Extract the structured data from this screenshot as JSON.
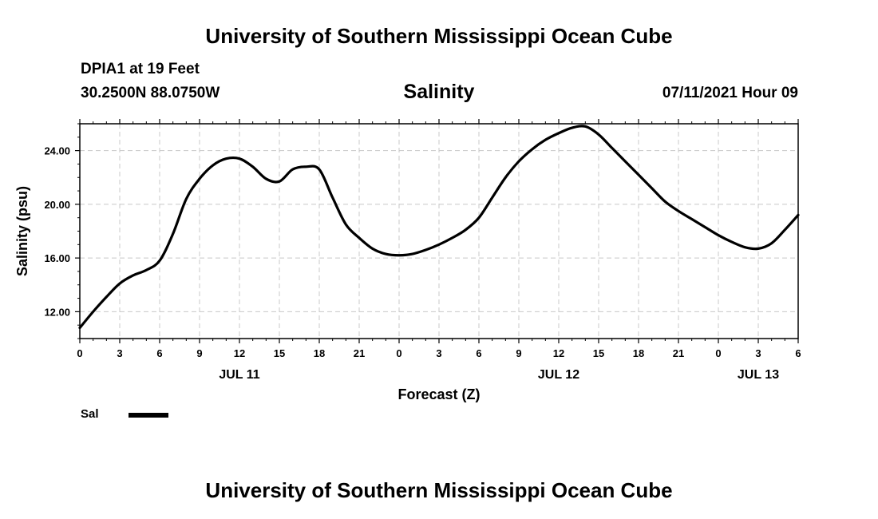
{
  "header": {
    "title": "University of Southern Mississippi Ocean Cube",
    "station": "DPIA1 at 19 Feet",
    "coords": "30.2500N  88.0750W",
    "timestamp": "07/11/2021 Hour 09"
  },
  "footer": {
    "title": "University of Southern Mississippi Ocean Cube"
  },
  "legend": {
    "label": "Sal",
    "color": "#000000"
  },
  "chart_data": {
    "type": "line",
    "title": "Salinity",
    "xlabel": "Forecast (Z)",
    "ylabel": "Salinity (psu)",
    "xlim": [
      0,
      54
    ],
    "ylim": [
      10,
      26
    ],
    "grid": true,
    "x_ticks": [
      0,
      3,
      6,
      9,
      12,
      15,
      18,
      21,
      24,
      27,
      30,
      33,
      36,
      39,
      42,
      45,
      48,
      51,
      54
    ],
    "x_tick_labels": [
      "0",
      "3",
      "6",
      "9",
      "12",
      "15",
      "18",
      "21",
      "0",
      "3",
      "6",
      "9",
      "12",
      "15",
      "18",
      "21",
      "0",
      "3",
      "6"
    ],
    "date_labels": [
      {
        "x": 12,
        "label": "JUL 11"
      },
      {
        "x": 36,
        "label": "JUL 12"
      },
      {
        "x": 51,
        "label": "JUL 13"
      }
    ],
    "y_ticks": [
      12,
      16,
      20,
      24
    ],
    "y_tick_labels": [
      "12.00",
      "16.00",
      "20.00",
      "24.00"
    ],
    "series": [
      {
        "name": "Sal",
        "x": [
          0,
          1,
          2,
          3,
          4,
          5,
          6,
          7,
          8,
          9,
          10,
          11,
          12,
          13,
          14,
          15,
          16,
          17,
          18,
          19,
          20,
          21,
          22,
          23,
          24,
          25,
          26,
          27,
          28,
          29,
          30,
          31,
          32,
          33,
          34,
          35,
          36,
          37,
          38,
          39,
          40,
          41,
          42,
          43,
          44,
          45,
          46,
          47,
          48,
          49,
          50,
          51,
          52,
          53,
          54
        ],
        "values": [
          10.8,
          12.0,
          13.1,
          14.1,
          14.7,
          15.1,
          15.8,
          17.8,
          20.4,
          21.9,
          22.9,
          23.4,
          23.4,
          22.8,
          21.9,
          21.7,
          22.6,
          22.8,
          22.6,
          20.5,
          18.5,
          17.5,
          16.7,
          16.3,
          16.2,
          16.3,
          16.6,
          17.0,
          17.5,
          18.1,
          19.0,
          20.5,
          22.0,
          23.2,
          24.1,
          24.8,
          25.3,
          25.7,
          25.8,
          25.2,
          24.2,
          23.2,
          22.2,
          21.2,
          20.2,
          19.5,
          18.9,
          18.3,
          17.7,
          17.2,
          16.8,
          16.7,
          17.1,
          18.1,
          19.2
        ]
      }
    ]
  }
}
